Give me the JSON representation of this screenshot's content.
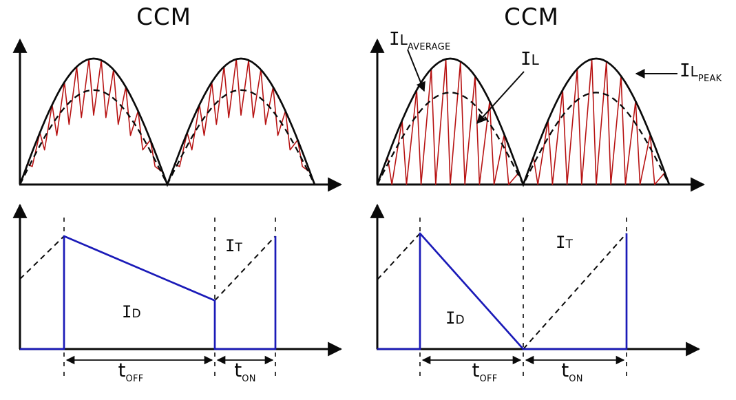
{
  "titles": {
    "left": "CCM",
    "right": "CCM"
  },
  "labels": {
    "il_average": {
      "base": "I",
      "cap": "L",
      "sub": "AVERAGE"
    },
    "il": {
      "base": "I",
      "cap": "L"
    },
    "il_peak": {
      "base": "I",
      "cap": "L",
      "sub": "PEAK"
    },
    "i_t": {
      "base": "I",
      "cap": "T"
    },
    "i_d": {
      "base": "I",
      "cap": "D"
    },
    "t_off": {
      "base": "t",
      "sub": "OFF"
    },
    "t_on": {
      "base": "t",
      "sub": "ON"
    }
  },
  "colors": {
    "line": "#0a0a0a",
    "ripple_red": "#b71212",
    "current_blue": "#1a1ab8",
    "background": "#ffffff"
  },
  "chart_data": [
    {
      "id": "inductor-current-left",
      "type": "line",
      "title": "CCM",
      "half_cycles": 2,
      "series": [
        {
          "name": "IL peak envelope",
          "shape": "rectified-sine",
          "line": "solid-black",
          "peak_fraction": 1.0
        },
        {
          "name": "IL average",
          "shape": "rectified-sine",
          "line": "dashed-black",
          "peak_fraction": 0.75
        },
        {
          "name": "IL switching ripple",
          "shape": "triangular-ripple",
          "line": "solid-red",
          "teeth_per_half_cycle": 12,
          "valley_fraction": 0.55,
          "rise_fraction": 0.62
        }
      ]
    },
    {
      "id": "inductor-current-right",
      "type": "line",
      "title": "CCM",
      "half_cycles": 2,
      "series": [
        {
          "name": "IL_PEAK envelope",
          "shape": "rectified-sine",
          "line": "solid-black",
          "peak_fraction": 1.0
        },
        {
          "name": "IL_AVERAGE",
          "shape": "rectified-sine",
          "line": "dashed-black",
          "peak_fraction": 0.73
        },
        {
          "name": "IL ripple",
          "shape": "triangular-ripple",
          "line": "solid-red",
          "teeth_per_half_cycle": 10,
          "valley_fraction": 0.0,
          "rise_fraction": 0.7
        }
      ]
    },
    {
      "id": "switch-cycle-left",
      "type": "line",
      "series": [
        {
          "name": "ID diode current",
          "line": "solid-blue",
          "shape": "trapezoid",
          "start_fraction": 1.0,
          "end_fraction": 0.43
        },
        {
          "name": "IT transistor current",
          "line": "dashed-black",
          "shape": "ramp",
          "entry_fraction": 0.62,
          "end_fraction": 1.0
        }
      ],
      "intervals": {
        "t_off_fraction": 0.713,
        "t_on_fraction": 0.287
      }
    },
    {
      "id": "switch-cycle-right",
      "type": "line",
      "series": [
        {
          "name": "ID diode current",
          "line": "solid-blue",
          "shape": "triangle",
          "start_fraction": 1.0,
          "end_fraction": 0.0
        },
        {
          "name": "IT transistor current",
          "line": "dashed-black",
          "shape": "ramp",
          "entry_fraction": 0.6,
          "end_fraction": 1.0
        }
      ],
      "intervals": {
        "t_off_fraction": 0.5,
        "t_on_fraction": 0.5
      }
    }
  ]
}
